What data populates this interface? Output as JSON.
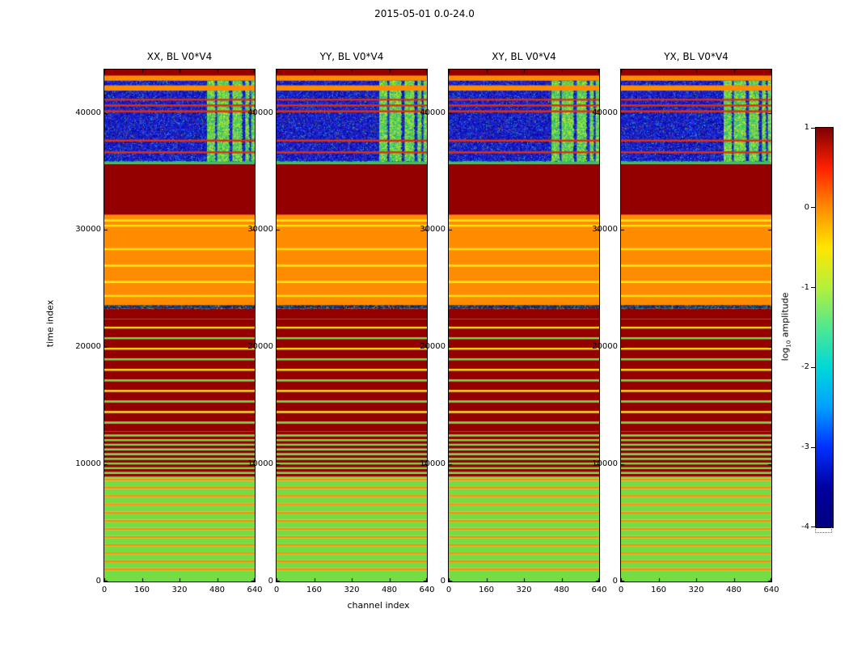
{
  "chart_data": {
    "type": "heatmap",
    "title": "2015-05-01 0.0-24.0",
    "xlabel": "channel index",
    "ylabel": "time index",
    "panels": [
      {
        "title": "XX, BL V0*V4"
      },
      {
        "title": "YY, BL V0*V4"
      },
      {
        "title": "XY, BL V0*V4"
      },
      {
        "title": "YX, BL V0*V4"
      }
    ],
    "xlim": [
      0,
      640
    ],
    "ylim": [
      0,
      43700
    ],
    "xticks": [
      0,
      160,
      320,
      480,
      640
    ],
    "yticks": [
      0,
      10000,
      20000,
      30000,
      40000
    ],
    "colorbar": {
      "label": "log10 amplitude",
      "label_pre": "log",
      "label_sub": "10",
      "label_post": " amplitude",
      "ticks": [
        1,
        0,
        -1,
        -2,
        -3,
        -4
      ],
      "lim": [
        -4,
        1
      ],
      "gradient": [
        "#7f0000",
        "#ff2000",
        "#ff8c00",
        "#ffe600",
        "#b4f03c",
        "#50e890",
        "#00d8d8",
        "#00a0ff",
        "#0030ff",
        "#0000a0",
        "#00007f"
      ]
    },
    "palette": {
      "green": "#74dd44",
      "orange": "#ff8c00",
      "yellow": "#ffe600",
      "darkred": "#940000",
      "teal": "#35c060",
      "red_line": "#e03010",
      "speckle_base": "#0a2f7a",
      "noise_base": "#1520cf",
      "bar_base": "#3ecb4e",
      "noise_speckle": [
        "#000080",
        "#000080",
        "#000080",
        "#000080",
        "#00009c",
        "#00009c",
        "#00009c",
        "#1a1ae0",
        "#1a1ae0",
        "#1a1ae0",
        "#1a1ae0",
        "#4040ff",
        "#4040ff",
        "#4040ff",
        "#2828d8",
        "#2828d8",
        "#2828d8",
        "#00c8ff",
        "#38d860",
        "#c04028"
      ],
      "bar_speckle": [
        "#c8e62e",
        "#c8e62e",
        "#c8e62e",
        "#63e245",
        "#63e245",
        "#63e245",
        "#2ab89e",
        "#2ab89e",
        "#ffe600",
        "#ffe600",
        "#1f7ac8",
        "#35c4b4",
        "#8ae23c",
        "#8ae23c",
        "#20a0d0",
        "#eaf03c"
      ],
      "band_speckle": [
        "#0a2f7a",
        "#0a2f7a",
        "#08a0a8",
        "#2a8a3a",
        "#00050f",
        "#104ac0",
        "#940000",
        "#ff8c00"
      ]
    },
    "bands": [
      [
        0,
        950,
        "green"
      ],
      [
        950,
        1150,
        "orange"
      ],
      [
        1150,
        1600,
        "green"
      ],
      [
        1600,
        1800,
        "orange"
      ],
      [
        1800,
        2300,
        "green"
      ],
      [
        2300,
        2480,
        "orange"
      ],
      [
        2480,
        3000,
        "green"
      ],
      [
        3000,
        3180,
        "orange"
      ],
      [
        3180,
        3700,
        "green"
      ],
      [
        3700,
        3880,
        "orange"
      ],
      [
        3880,
        4400,
        "green"
      ],
      [
        4400,
        4580,
        "orange"
      ],
      [
        4580,
        5100,
        "green"
      ],
      [
        5100,
        5280,
        "orange"
      ],
      [
        5280,
        5800,
        "green"
      ],
      [
        5800,
        5980,
        "orange"
      ],
      [
        5980,
        6500,
        "green"
      ],
      [
        6500,
        6680,
        "orange"
      ],
      [
        6680,
        7200,
        "green"
      ],
      [
        7200,
        7380,
        "orange"
      ],
      [
        7380,
        7900,
        "green"
      ],
      [
        7900,
        8080,
        "orange"
      ],
      [
        8080,
        8600,
        "green"
      ],
      [
        8600,
        8780,
        "orange"
      ],
      [
        8780,
        8950,
        "green"
      ],
      [
        8950,
        9200,
        "darkred"
      ],
      [
        9200,
        9350,
        "green"
      ],
      [
        9350,
        9600,
        "darkred"
      ],
      [
        9600,
        9750,
        "green"
      ],
      [
        9750,
        10000,
        "darkred"
      ],
      [
        10000,
        10150,
        "green"
      ],
      [
        10150,
        10400,
        "darkred"
      ],
      [
        10400,
        10550,
        "green"
      ],
      [
        10550,
        10800,
        "darkred"
      ],
      [
        10800,
        10950,
        "green"
      ],
      [
        10950,
        11200,
        "darkred"
      ],
      [
        11200,
        11350,
        "green"
      ],
      [
        11350,
        11600,
        "darkred"
      ],
      [
        11600,
        11750,
        "green"
      ],
      [
        11750,
        12000,
        "darkred"
      ],
      [
        12000,
        12150,
        "green"
      ],
      [
        12150,
        12400,
        "darkred"
      ],
      [
        12400,
        12550,
        "green"
      ],
      [
        12550,
        12800,
        "darkred"
      ],
      [
        12800,
        13500,
        "darkred"
      ],
      [
        13500,
        13650,
        "green"
      ],
      [
        13650,
        14400,
        "darkred"
      ],
      [
        14400,
        14550,
        "yellow"
      ],
      [
        14550,
        15300,
        "darkred"
      ],
      [
        15300,
        15450,
        "green"
      ],
      [
        15450,
        16200,
        "darkred"
      ],
      [
        16200,
        16350,
        "yellow"
      ],
      [
        16350,
        17100,
        "darkred"
      ],
      [
        17100,
        17250,
        "green"
      ],
      [
        17250,
        18000,
        "darkred"
      ],
      [
        18000,
        18150,
        "yellow"
      ],
      [
        18150,
        18900,
        "darkred"
      ],
      [
        18900,
        19050,
        "green"
      ],
      [
        19050,
        19800,
        "darkred"
      ],
      [
        19800,
        19950,
        "yellow"
      ],
      [
        19950,
        20700,
        "darkred"
      ],
      [
        20700,
        20850,
        "green"
      ],
      [
        20850,
        21600,
        "darkred"
      ],
      [
        21600,
        21750,
        "yellow"
      ],
      [
        21750,
        22400,
        "darkred"
      ],
      [
        22400,
        23300,
        "darkred"
      ],
      [
        23300,
        23600,
        "speckle"
      ],
      [
        23600,
        24300,
        "orange"
      ],
      [
        24300,
        24450,
        "yellow"
      ],
      [
        24450,
        25500,
        "orange"
      ],
      [
        25500,
        25650,
        "yellow"
      ],
      [
        25650,
        26900,
        "orange"
      ],
      [
        26900,
        27050,
        "yellow"
      ],
      [
        27050,
        28300,
        "orange"
      ],
      [
        28300,
        28450,
        "yellow"
      ],
      [
        28450,
        30300,
        "orange"
      ],
      [
        30300,
        30450,
        "yellow"
      ],
      [
        30450,
        30750,
        "orange"
      ],
      [
        30750,
        30900,
        "yellow"
      ],
      [
        30900,
        31300,
        "orange"
      ],
      [
        31300,
        35650,
        "darkred"
      ],
      [
        35650,
        35900,
        "teal"
      ]
    ],
    "noise": {
      "t0": 35900,
      "t1": 43700,
      "red_lines": [
        [
          36550,
          36720
        ],
        [
          37550,
          37720
        ],
        [
          40050,
          40220
        ],
        [
          40550,
          40720
        ],
        [
          41050,
          41200
        ]
      ],
      "bars_t": [
        35900,
        42750
      ],
      "bars": [
        [
          437,
          470
        ],
        [
          480,
          530
        ],
        [
          545,
          585
        ],
        [
          600,
          615
        ],
        [
          625,
          640
        ]
      ],
      "orange_bands": [
        [
          41900,
          42350
        ],
        [
          42750,
          43200
        ]
      ],
      "top_band": [
        43200,
        43700
      ]
    }
  }
}
